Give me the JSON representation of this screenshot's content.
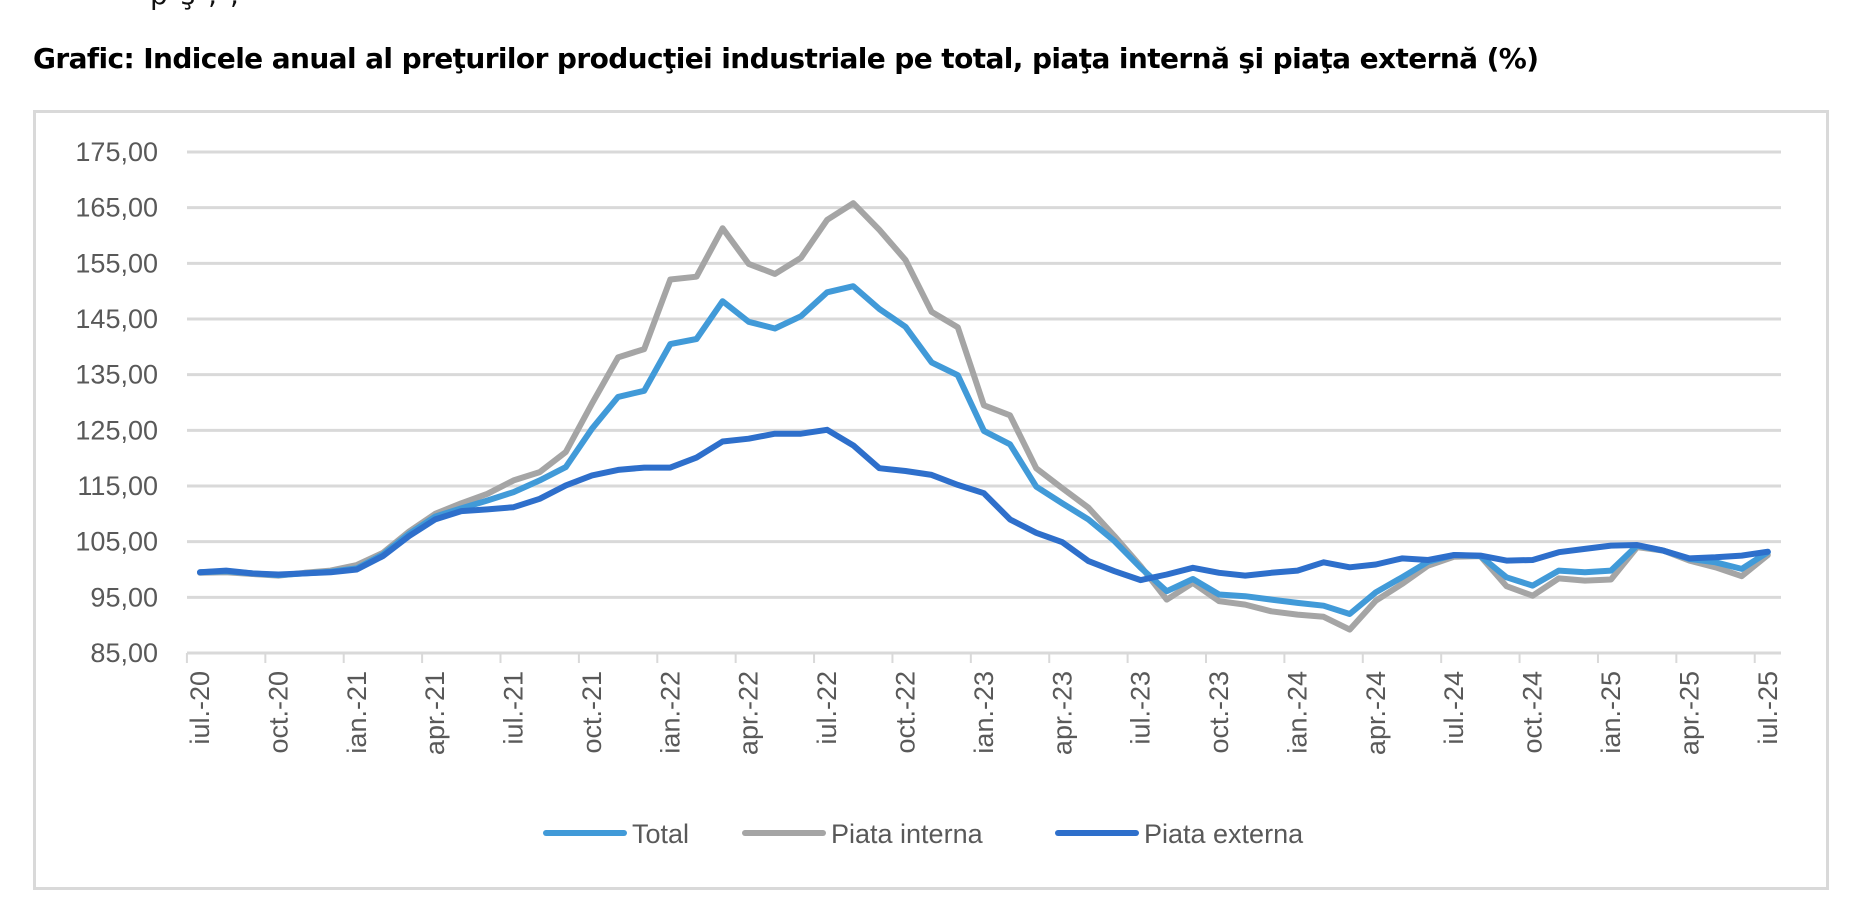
{
  "page": {
    "clipped_text_fragment": "  p ş     ,          ,  ",
    "title": "Grafic: Indicele anual al preţurilor producţiei industriale pe total, piaţa internă şi piaţa externă (%)"
  },
  "chart_data": {
    "type": "line",
    "title": "Grafic: Indicele anual al preţurilor producţiei industriale pe total, piaţa internă şi piaţa externă (%)",
    "xlabel": "",
    "ylabel": "",
    "ylim": [
      85,
      175
    ],
    "yticks": [
      "175,00",
      "165,00",
      "155,00",
      "145,00",
      "135,00",
      "125,00",
      "115,00",
      "105,00",
      "95,00",
      "85,00"
    ],
    "ytick_values": [
      175,
      165,
      155,
      145,
      135,
      125,
      115,
      105,
      95,
      85
    ],
    "grid": true,
    "legend_position": "bottom",
    "x_start": "iul.-20",
    "x_end": "iul.-25",
    "x_count": 61,
    "xtick_labels": [
      "iul.-20",
      "oct.-20",
      "ian.-21",
      "apr.-21",
      "iul.-21",
      "oct.-21",
      "ian.-22",
      "apr.-22",
      "iul.-22",
      "oct.-22",
      "ian.-23",
      "apr.-23",
      "iul.-23",
      "oct.-23",
      "ian.-24",
      "apr.-24",
      "iul.-24",
      "oct.-24",
      "ian.-25",
      "apr.-25",
      "iul.-25"
    ],
    "xtick_step_months": 3,
    "series": [
      {
        "name": "Total",
        "color": "#419ad8",
        "values": [
          99.5,
          99.7,
          99.3,
          99.0,
          99.3,
          99.6,
          100.2,
          102.7,
          106.4,
          109.5,
          111.0,
          112.4,
          113.9,
          116.0,
          118.4,
          125.3,
          131.0,
          132.1,
          140.5,
          141.4,
          148.2,
          144.5,
          143.3,
          145.5,
          149.8,
          150.9,
          146.8,
          143.6,
          137.2,
          134.9,
          124.9,
          122.5,
          114.9,
          111.9,
          109.0,
          105.1,
          100.3,
          96.1,
          98.3,
          95.5,
          95.2,
          94.6,
          94.0,
          93.5,
          92.0,
          95.9,
          98.6,
          101.4,
          102.6,
          102.4,
          98.6,
          97.1,
          99.8,
          99.5,
          99.8,
          104.3,
          103.4,
          101.9,
          101.3,
          100.1,
          103.1
        ]
      },
      {
        "name": "Piata interna",
        "color": "#a5a5a5",
        "values": [
          99.4,
          99.5,
          99.2,
          98.9,
          99.4,
          99.8,
          100.8,
          103.0,
          106.8,
          110.0,
          111.9,
          113.6,
          116.0,
          117.5,
          121.1,
          129.8,
          138.1,
          139.6,
          152.1,
          152.6,
          161.3,
          154.9,
          153.1,
          156.0,
          162.8,
          165.8,
          161.0,
          155.6,
          146.3,
          143.5,
          129.5,
          127.7,
          118.2,
          114.6,
          111.1,
          106.0,
          100.6,
          94.6,
          97.6,
          94.3,
          93.7,
          92.5,
          91.9,
          91.5,
          89.2,
          94.4,
          97.4,
          100.7,
          102.3,
          102.4,
          97.0,
          95.3,
          98.4,
          98.0,
          98.2,
          104.0,
          103.4,
          101.6,
          100.4,
          98.8,
          102.6
        ]
      },
      {
        "name": "Piata externa",
        "color": "#2e6fcb",
        "values": [
          99.5,
          99.8,
          99.3,
          99.1,
          99.3,
          99.5,
          100.0,
          102.4,
          106.0,
          109.0,
          110.5,
          110.8,
          111.2,
          112.7,
          115.1,
          116.9,
          117.9,
          118.3,
          118.3,
          120.1,
          123.0,
          123.5,
          124.4,
          124.4,
          125.1,
          122.3,
          118.2,
          117.7,
          117.0,
          115.2,
          113.7,
          109.0,
          106.6,
          104.9,
          101.5,
          99.7,
          98.1,
          99.1,
          100.3,
          99.4,
          98.9,
          99.4,
          99.8,
          101.3,
          100.4,
          100.9,
          102.0,
          101.7,
          102.6,
          102.5,
          101.6,
          101.7,
          103.1,
          103.7,
          104.3,
          104.4,
          103.4,
          102.0,
          102.2,
          102.5,
          103.2
        ]
      }
    ]
  },
  "legend": {
    "items": [
      {
        "label": "Total",
        "color": "#419ad8"
      },
      {
        "label": "Piata interna",
        "color": "#a5a5a5"
      },
      {
        "label": "Piata externa",
        "color": "#2e6fcb"
      }
    ]
  }
}
